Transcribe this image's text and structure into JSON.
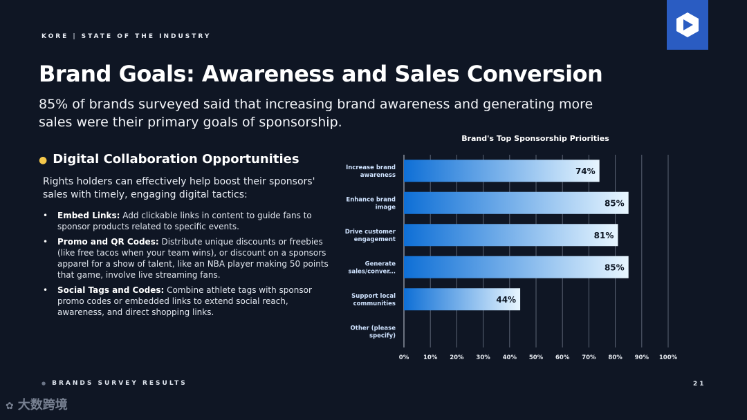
{
  "header": {
    "brand": "KORE",
    "section": "STATE OF THE INDUSTRY"
  },
  "title": "Brand Goals: Awareness and Sales Conversion",
  "subtitle": "85% of brands surveyed said that increasing brand awareness and generating more sales were their primary goals of sponsorship.",
  "left": {
    "heading": "Digital Collaboration  Opportunities",
    "heading_icon": "lightbulb-icon",
    "intro": "Rights holders can effectively help boost their sponsors' sales with timely, engaging digital tactics:",
    "bullets": [
      {
        "title": "Embed Links:",
        "text": " Add clickable links in content to guide fans to sponsor products related to specific events."
      },
      {
        "title": "Promo and QR Codes:",
        "text": " Distribute unique discounts or freebies (like free tacos when your team wins), or discount on a sponsors apparel for a show of talent, like an NBA player making 50 points that game, involve live streaming fans."
      },
      {
        "title": "Social Tags and Codes:",
        "text": " Combine athlete tags with sponsor promo codes or embedded links to extend social reach, awareness, and direct shopping links."
      }
    ]
  },
  "footer": {
    "label": "BRANDS SURVEY RESULTS",
    "page": "21"
  },
  "watermark": "大数跨境",
  "colors": {
    "background": "#0f1624",
    "bar_dark": "#0e6fd6",
    "bar_light": "#e8f6ff",
    "logo_box": "#2a5cc2"
  },
  "chart_data": {
    "type": "bar",
    "orientation": "horizontal",
    "title": "Brand's Top Sponsorship Priorities",
    "categories": [
      "Increase brand awareness",
      "Enhance brand image",
      "Drive customer engagement",
      "Generate sales/conver...",
      "Support local communities",
      "Other (please specify)"
    ],
    "values": [
      74,
      85,
      81,
      85,
      44,
      0
    ],
    "value_labels": [
      "74%",
      "85%",
      "81%",
      "85%",
      "44%",
      ""
    ],
    "xlim": [
      0,
      100
    ],
    "x_ticks": [
      "0%",
      "10%",
      "20%",
      "30%",
      "40%",
      "50%",
      "60%",
      "70%",
      "80%",
      "90%",
      "100%"
    ],
    "grid": true,
    "legend": "none"
  }
}
